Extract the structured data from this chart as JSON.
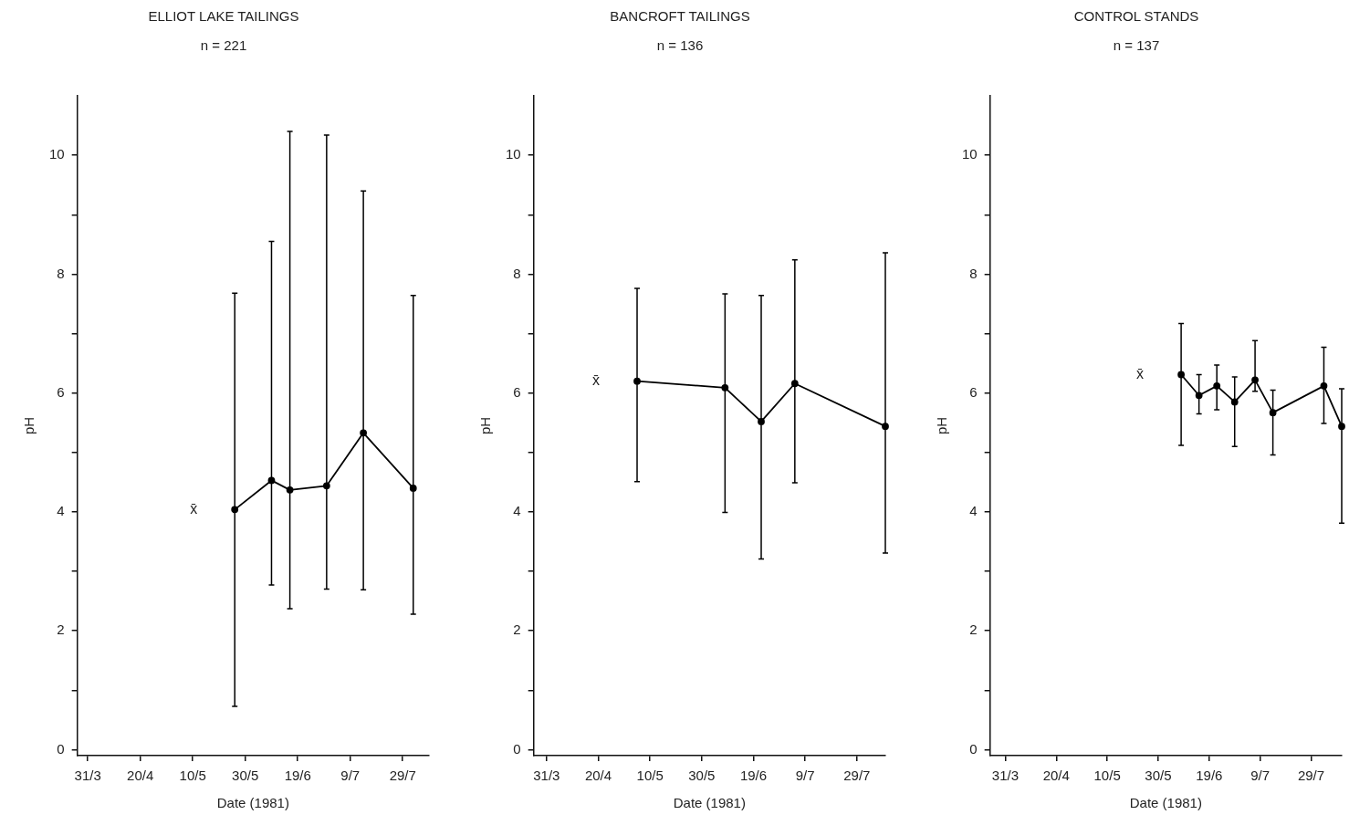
{
  "chart_data": [
    {
      "type": "line",
      "title": "ELLIOT LAKE TAILINGS",
      "subtitle": "n = 221",
      "xlabel": "Date (1981)",
      "ylabel": "pH",
      "x": [
        "1981-05-26",
        "1981-06-09",
        "1981-06-16",
        "1981-06-30",
        "1981-07-14",
        "1981-08-02"
      ],
      "values": [
        4.04,
        4.53,
        4.37,
        4.44,
        5.33,
        4.4
      ],
      "errors": [
        [
          0.73,
          7.68
        ],
        [
          2.77,
          8.55
        ],
        [
          2.37,
          10.4
        ],
        [
          2.7,
          10.34
        ],
        [
          2.69,
          9.4
        ],
        [
          2.28,
          7.64
        ]
      ],
      "color": "#000000",
      "marker": "circle",
      "line_style": "solid",
      "grid": false,
      "legend": false,
      "xlim": [
        "1981-03-27",
        "1981-08-08"
      ],
      "xticks": [
        {
          "value": "1981-03-31",
          "label": "31/3"
        },
        {
          "value": "1981-04-20",
          "label": "20/4"
        },
        {
          "value": "1981-05-10",
          "label": "10/5"
        },
        {
          "value": "1981-05-30",
          "label": "30/5"
        },
        {
          "value": "1981-06-19",
          "label": "19/6"
        },
        {
          "value": "1981-07-09",
          "label": "9/7"
        },
        {
          "value": "1981-07-29",
          "label": "29/7"
        }
      ],
      "ylim": [
        -0.1,
        11
      ],
      "yticks": [
        0,
        {
          "value": 1,
          "label": null
        },
        2,
        {
          "value": 3,
          "label": null
        },
        4,
        {
          "value": 5,
          "label": null
        },
        6,
        {
          "value": 7,
          "label": null
        },
        8,
        {
          "value": 9,
          "label": null
        },
        10
      ],
      "annotations": [
        "x̄"
      ]
    },
    {
      "type": "line",
      "title": "BANCROFT TAILINGS",
      "subtitle": "n = 136",
      "xlabel": "Date (1981)",
      "ylabel": "pH",
      "x": [
        "1981-05-05",
        "1981-06-08",
        "1981-06-22",
        "1981-07-05",
        "1981-08-09"
      ],
      "values": [
        6.2,
        6.09,
        5.52,
        6.16,
        5.44
      ],
      "errors": [
        [
          4.51,
          7.76
        ],
        [
          3.99,
          7.67
        ],
        [
          3.21,
          7.64
        ],
        [
          4.49,
          8.24
        ],
        [
          3.31,
          8.36
        ]
      ],
      "color": "#000000",
      "marker": "circle",
      "line_style": "solid",
      "grid": false,
      "legend": false,
      "xlim": [
        "1981-03-26",
        "1981-08-09"
      ],
      "xticks": [
        {
          "value": "1981-03-31",
          "label": "31/3"
        },
        {
          "value": "1981-04-20",
          "label": "20/4"
        },
        {
          "value": "1981-05-10",
          "label": "10/5"
        },
        {
          "value": "1981-05-30",
          "label": "30/5"
        },
        {
          "value": "1981-06-19",
          "label": "19/6"
        },
        {
          "value": "1981-07-09",
          "label": "9/7"
        },
        {
          "value": "1981-07-29",
          "label": "29/7"
        }
      ],
      "ylim": [
        -0.1,
        11
      ],
      "yticks": [
        0,
        {
          "value": 1,
          "label": null
        },
        2,
        {
          "value": 3,
          "label": null
        },
        4,
        {
          "value": 5,
          "label": null
        },
        6,
        {
          "value": 7,
          "label": null
        },
        8,
        {
          "value": 9,
          "label": null
        },
        10
      ],
      "annotations": [
        "x̄"
      ]
    },
    {
      "type": "line",
      "title": "CONTROL STANDS",
      "subtitle": "n = 137",
      "xlabel": "Date (1981)",
      "ylabel": "pH",
      "x": [
        "1981-06-08",
        "1981-06-15",
        "1981-06-22",
        "1981-06-29",
        "1981-07-07",
        "1981-07-14",
        "1981-08-03",
        "1981-08-10"
      ],
      "values": [
        6.31,
        5.96,
        6.12,
        5.85,
        6.22,
        5.67,
        6.12,
        5.44
      ],
      "errors": [
        [
          5.12,
          7.17
        ],
        [
          5.65,
          6.31
        ],
        [
          5.72,
          6.47
        ],
        [
          5.1,
          6.27
        ],
        [
          6.03,
          6.88
        ],
        [
          4.96,
          6.05
        ],
        [
          5.49,
          6.77
        ],
        [
          3.81,
          6.07
        ]
      ],
      "color": "#000000",
      "marker": "circle",
      "line_style": "solid",
      "grid": false,
      "legend": false,
      "xlim": [
        "1981-03-25",
        "1981-08-10"
      ],
      "xticks": [
        {
          "value": "1981-03-31",
          "label": "31/3"
        },
        {
          "value": "1981-04-20",
          "label": "20/4"
        },
        {
          "value": "1981-05-10",
          "label": "10/5"
        },
        {
          "value": "1981-05-30",
          "label": "30/5"
        },
        {
          "value": "1981-06-19",
          "label": "19/6"
        },
        {
          "value": "1981-07-09",
          "label": "9/7"
        },
        {
          "value": "1981-07-29",
          "label": "29/7"
        }
      ],
      "ylim": [
        -0.1,
        11
      ],
      "yticks": [
        0,
        {
          "value": 1,
          "label": null
        },
        2,
        {
          "value": 3,
          "label": null
        },
        4,
        {
          "value": 5,
          "label": null
        },
        6,
        {
          "value": 7,
          "label": null
        },
        8,
        {
          "value": 9,
          "label": null
        },
        10
      ],
      "annotations": [
        "x̄"
      ]
    }
  ]
}
